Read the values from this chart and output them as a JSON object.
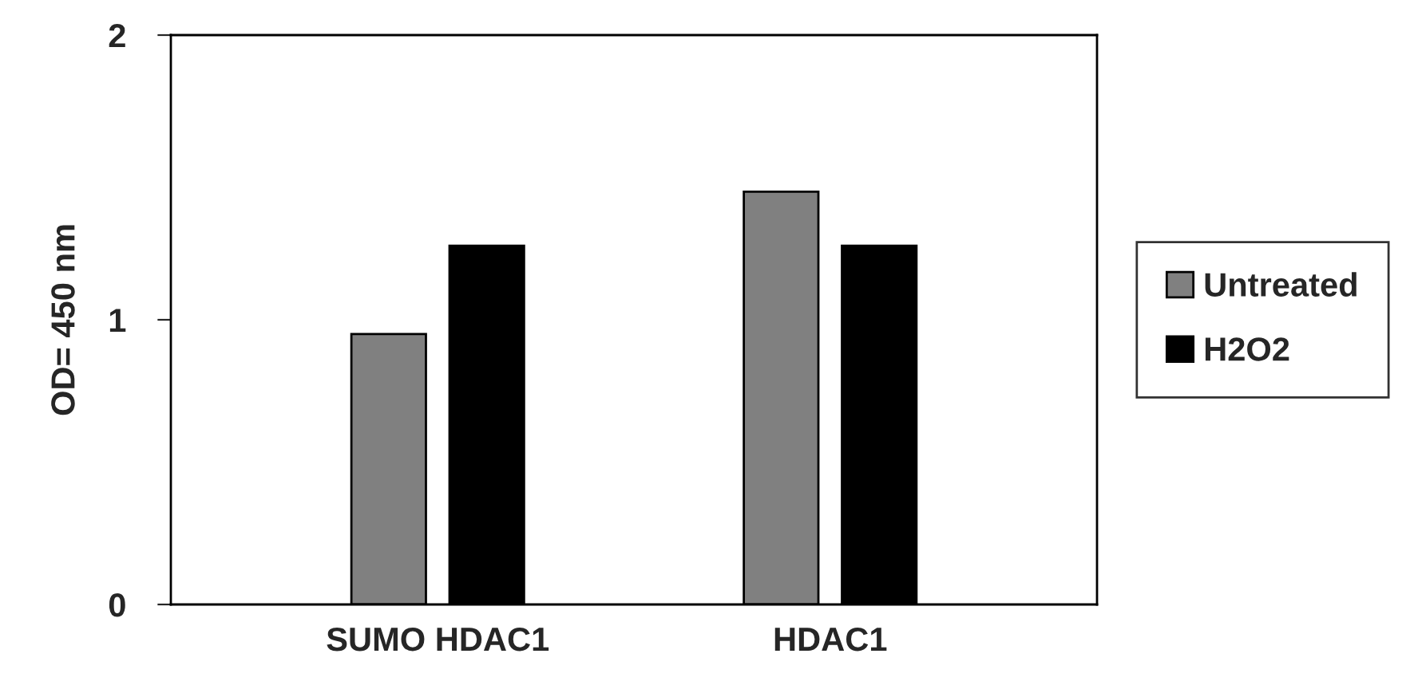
{
  "chart_data": {
    "type": "bar",
    "ylabel": "OD= 450 nm",
    "categories": [
      "SUMO HDAC1",
      "HDAC1"
    ],
    "series": [
      {
        "name": "Untreated",
        "color": "#808080",
        "values": [
          0.95,
          1.45
        ]
      },
      {
        "name": "H2O2",
        "color": "#000000",
        "values": [
          1.26,
          1.26
        ]
      }
    ],
    "ylim": [
      0,
      2
    ],
    "yticks": [
      0,
      1,
      2
    ],
    "grid": false,
    "legend": "right"
  }
}
